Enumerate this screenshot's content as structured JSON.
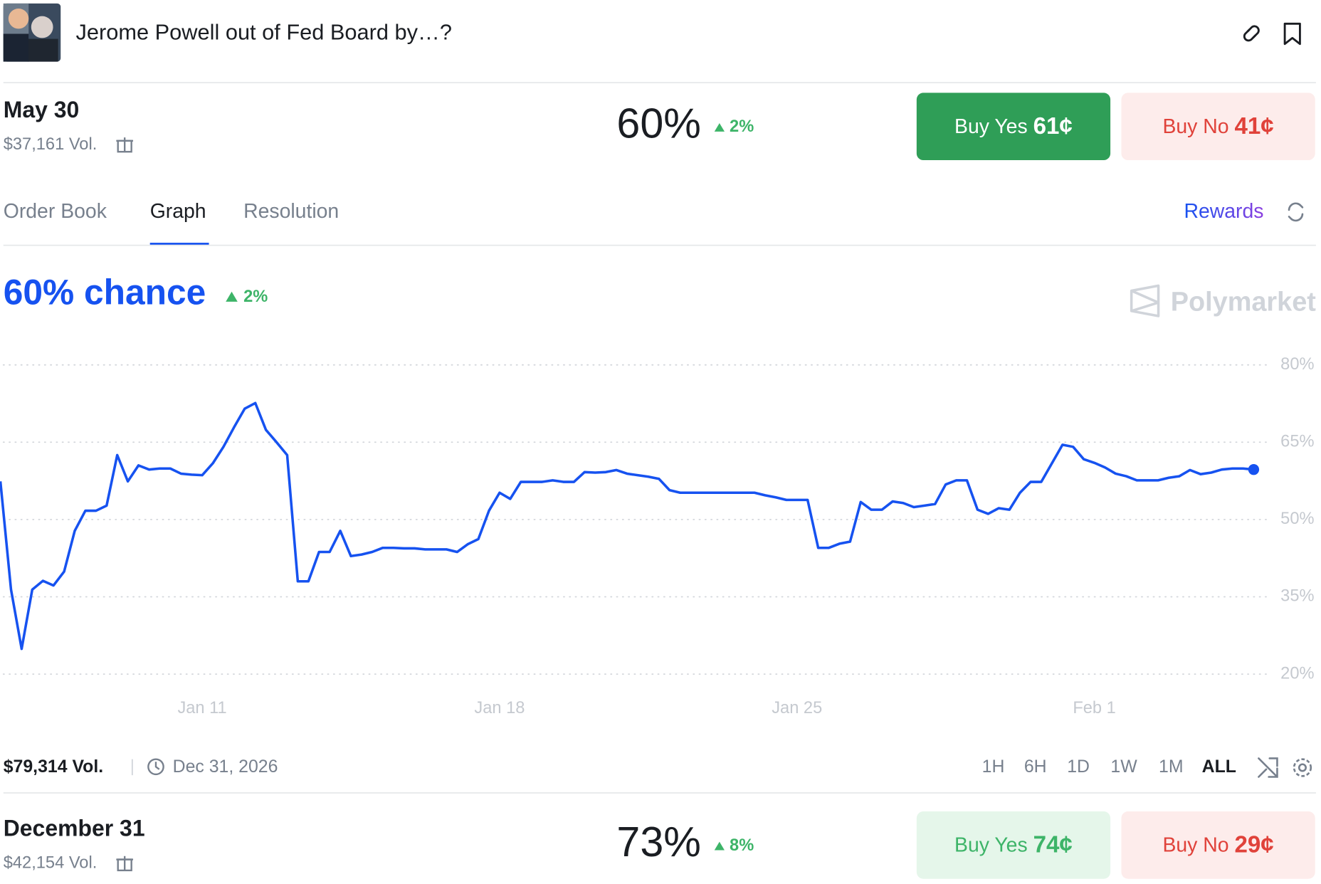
{
  "header": {
    "title": "Jerome Powell out of Fed Board by…?"
  },
  "markets": [
    {
      "date": "May 30",
      "volume": "$37,161 Vol.",
      "chance": "60%",
      "change": "2%",
      "buy_yes": {
        "label": "Buy Yes",
        "price": "61¢"
      },
      "buy_no": {
        "label": "Buy No",
        "price": "41¢"
      }
    },
    {
      "date": "December 31",
      "volume": "$42,154 Vol.",
      "chance": "73%",
      "change": "8%",
      "buy_yes": {
        "label": "Buy Yes",
        "price": "74¢"
      },
      "buy_no": {
        "label": "Buy No",
        "price": "29¢"
      }
    }
  ],
  "tabs": [
    "Order Book",
    "Graph",
    "Resolution"
  ],
  "rewards": "Rewards",
  "watermark": "Polymarket",
  "footer": {
    "volume": "$79,314 Vol.",
    "end_date": "Dec 31, 2026",
    "ranges": [
      "1H",
      "6H",
      "1D",
      "1W",
      "1M",
      "ALL"
    ]
  },
  "chart_data": {
    "type": "line",
    "title": "60% chance",
    "subtitle": "2%",
    "color": "#1652f0",
    "grid": true,
    "categories": [
      null,
      null,
      null,
      null,
      null,
      null,
      null,
      null,
      null,
      null,
      null,
      null,
      null,
      null,
      null,
      null,
      null,
      null,
      null,
      "Jan 11",
      null,
      null,
      null,
      null,
      null,
      null,
      null,
      null,
      null,
      null,
      null,
      null,
      null,
      null,
      null,
      null,
      null,
      null,
      null,
      null,
      null,
      null,
      null,
      null,
      null,
      null,
      null,
      "Jan 18",
      null,
      null,
      null,
      null,
      null,
      null,
      null,
      null,
      null,
      null,
      null,
      null,
      null,
      null,
      null,
      null,
      null,
      null,
      null,
      null,
      null,
      null,
      null,
      null,
      null,
      null,
      null,
      "Jan 25",
      null,
      null,
      null,
      null,
      null,
      null,
      null,
      null,
      null,
      null,
      null,
      null,
      null,
      null,
      null,
      null,
      null,
      null,
      null,
      null,
      null,
      null,
      null,
      null,
      null,
      null,
      null,
      "Feb 1",
      null,
      null,
      null,
      null,
      null,
      null,
      null,
      null,
      null,
      null,
      null,
      null,
      null,
      null,
      null
    ],
    "values": [
      57.4,
      36.4,
      24.9,
      36.4,
      38.1,
      37.2,
      39.9,
      47.8,
      51.7,
      51.7,
      52.7,
      62.5,
      57.4,
      60.5,
      59.7,
      59.9,
      59.9,
      58.9,
      58.7,
      58.6,
      60.9,
      64.1,
      67.9,
      71.5,
      72.6,
      67.4,
      65.0,
      62.5,
      38.0,
      38.0,
      43.7,
      43.7,
      47.8,
      42.9,
      43.2,
      43.7,
      44.5,
      44.5,
      44.4,
      44.4,
      44.2,
      44.2,
      44.2,
      43.7,
      45.2,
      46.2,
      51.7,
      55.2,
      54.0,
      57.3,
      57.3,
      57.3,
      57.6,
      57.3,
      57.3,
      59.2,
      59.1,
      59.2,
      59.6,
      58.9,
      58.6,
      58.3,
      57.9,
      55.7,
      55.2,
      55.2,
      55.2,
      55.2,
      55.2,
      55.2,
      55.2,
      55.2,
      54.7,
      54.3,
      53.8,
      53.8,
      53.8,
      44.5,
      44.5,
      45.3,
      45.7,
      53.4,
      51.9,
      51.9,
      53.5,
      53.2,
      52.4,
      52.7,
      53.0,
      56.8,
      57.6,
      57.6,
      51.9,
      51.1,
      52.2,
      51.9,
      55.2,
      57.3,
      57.3,
      60.9,
      64.5,
      64.1,
      61.7,
      61.0,
      60.1,
      58.9,
      58.4,
      57.6,
      57.6,
      57.6,
      58.1,
      58.4,
      59.6,
      58.8,
      59.1,
      59.7,
      59.9,
      59.9,
      59.7
    ],
    "ylim": [
      20,
      80
    ],
    "yticks": [
      {
        "value": 20,
        "label": "20%"
      },
      {
        "value": 35,
        "label": "35%"
      },
      {
        "value": 50,
        "label": "50%"
      },
      {
        "value": 65,
        "label": "65%"
      },
      {
        "value": 80,
        "label": "80%"
      }
    ]
  }
}
